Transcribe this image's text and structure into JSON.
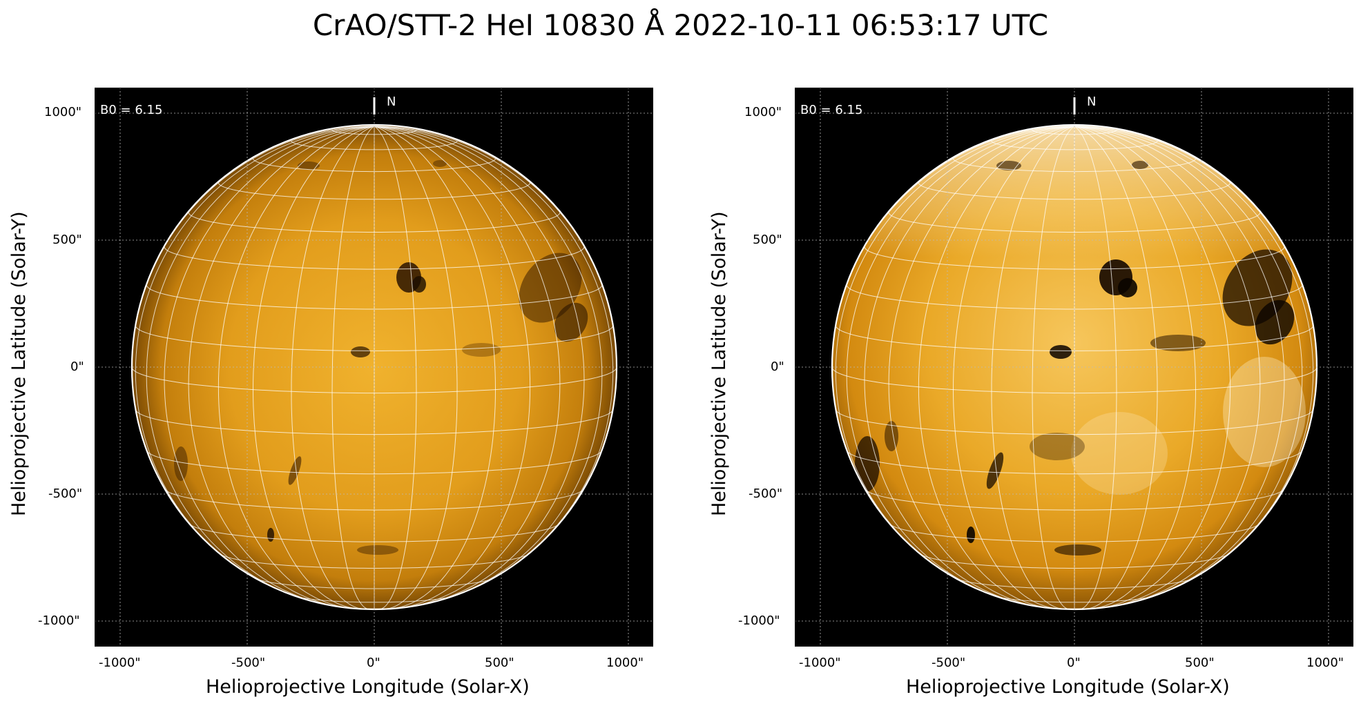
{
  "title": "CrAO/STT-2 HeI 10830 Å 2022-10-11 06:53:17 UTC",
  "colors": {
    "background": "#000000",
    "disk_base": "#d98f12",
    "grid": "#ffffff"
  },
  "panels": [
    {
      "id": "left",
      "b0_label": "B0 = 6.15",
      "north_label": "N",
      "xlabel": "Helioprojective Longitude (Solar-X)",
      "ylabel": "Helioprojective Latitude (Solar-Y)",
      "xticks": [
        "-1000\"",
        "-500\"",
        "0\"",
        "500\"",
        "1000\""
      ],
      "yticks": [
        "1000\"",
        "500\"",
        "0\"",
        "-500\"",
        "-1000\""
      ],
      "contrast": "normal"
    },
    {
      "id": "right",
      "b0_label": "B0 = 6.15",
      "north_label": "N",
      "xlabel": "Helioprojective Longitude (Solar-X)",
      "ylabel": "Helioprojective Latitude (Solar-Y)",
      "xticks": [
        "-1000\"",
        "-500\"",
        "0\"",
        "500\"",
        "1000\""
      ],
      "yticks": [
        "1000\"",
        "500\"",
        "0\"",
        "-500\"",
        "-1000\""
      ],
      "contrast": "enhanced"
    }
  ]
}
